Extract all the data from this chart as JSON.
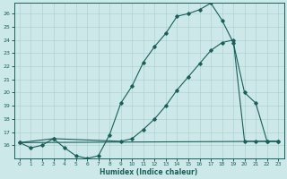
{
  "xlabel": "Humidex (Indice chaleur)",
  "bg_color": "#cce8e8",
  "grid_color": "#aacccc",
  "line_color": "#1a5f5a",
  "xlim": [
    -0.5,
    23.5
  ],
  "ylim": [
    15.0,
    26.8
  ],
  "yticks": [
    16,
    17,
    18,
    19,
    20,
    21,
    22,
    23,
    24,
    25,
    26
  ],
  "xticks": [
    0,
    1,
    2,
    3,
    4,
    5,
    6,
    7,
    8,
    9,
    10,
    11,
    12,
    13,
    14,
    15,
    16,
    17,
    18,
    19,
    20,
    21,
    22,
    23
  ],
  "line1_x": [
    0,
    1,
    2,
    3,
    4,
    5,
    6,
    7,
    8,
    9,
    10,
    11,
    12,
    13,
    14,
    15,
    16,
    17,
    18,
    19,
    20,
    21,
    22,
    23
  ],
  "line1_y": [
    16.2,
    15.8,
    16.0,
    16.5,
    15.8,
    15.2,
    15.0,
    15.2,
    16.8,
    19.2,
    20.5,
    22.3,
    23.5,
    24.5,
    25.8,
    26.0,
    26.3,
    26.8,
    25.5,
    23.8,
    20.0,
    19.2,
    16.3,
    16.3
  ],
  "line2_x": [
    0,
    3,
    9,
    10,
    11,
    12,
    13,
    14,
    15,
    16,
    17,
    18,
    19,
    20,
    21,
    22,
    23
  ],
  "line2_y": [
    16.2,
    16.5,
    16.3,
    16.5,
    17.2,
    18.0,
    19.0,
    20.2,
    21.2,
    22.2,
    23.2,
    23.8,
    24.0,
    16.3,
    16.3,
    16.3,
    16.3
  ],
  "line3_x": [
    0,
    23
  ],
  "line3_y": [
    16.2,
    16.3
  ],
  "figwidth": 3.2,
  "figheight": 2.0,
  "dpi": 100
}
